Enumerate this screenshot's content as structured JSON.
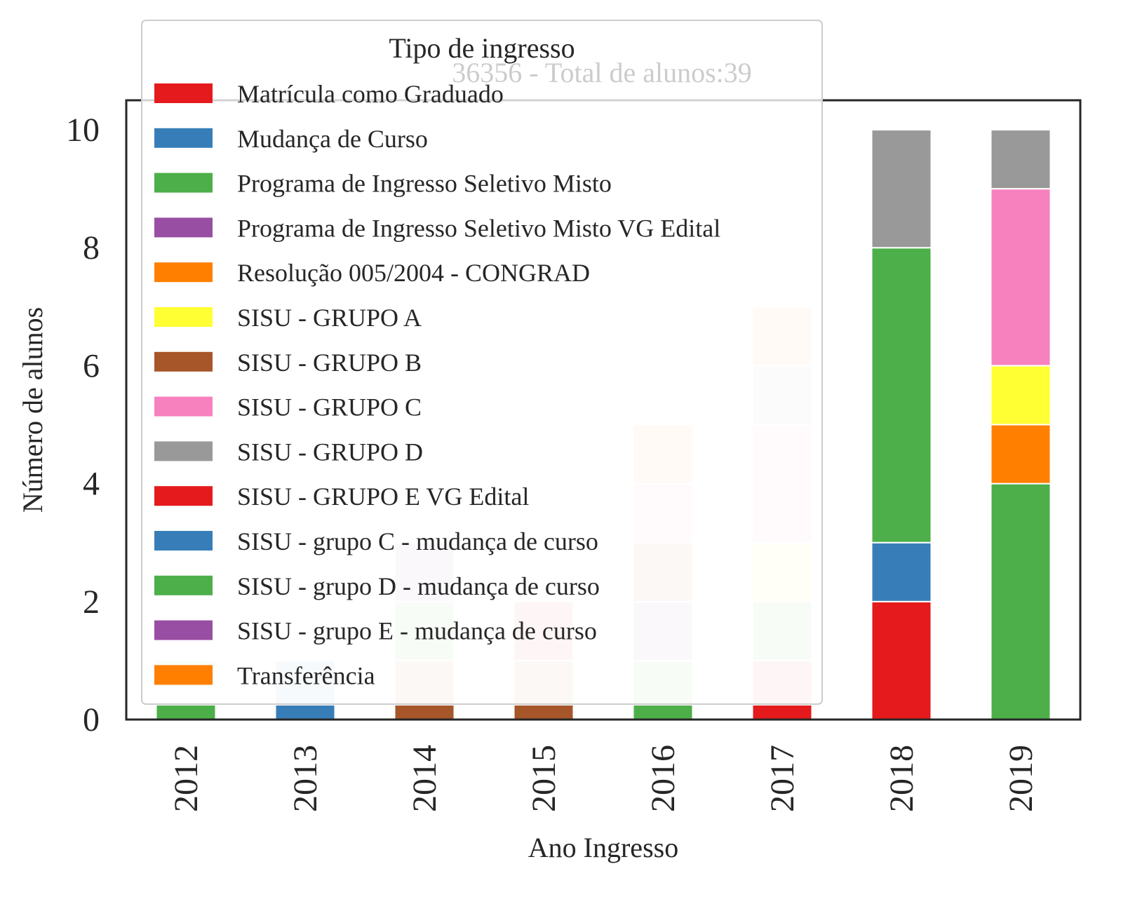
{
  "chart_data": {
    "type": "bar",
    "stacked": true,
    "title": "36356 - Total de alunos:39",
    "xlabel": "Ano Ingresso",
    "ylabel": "Número de alunos",
    "ylim": [
      0,
      10.5
    ],
    "yticks": [
      0,
      2,
      4,
      6,
      8,
      10
    ],
    "categories": [
      "2012",
      "2013",
      "2014",
      "2015",
      "2016",
      "2017",
      "2018",
      "2019"
    ],
    "legend": {
      "title": "Tipo de ingresso",
      "placement": "top-left"
    },
    "series": [
      {
        "name": "Matrícula como Graduado",
        "color": "#e41a1c",
        "values": [
          0,
          0,
          0,
          0,
          0,
          0.25,
          2,
          0
        ]
      },
      {
        "name": "Mudança de Curso",
        "color": "#377eb8",
        "values": [
          0,
          0.25,
          0,
          0,
          0,
          0,
          1,
          0
        ]
      },
      {
        "name": "Programa de Ingresso Seletivo Misto",
        "color": "#4daf4a",
        "values": [
          0.25,
          0,
          0,
          0,
          0.25,
          0,
          5,
          4
        ]
      },
      {
        "name": "Programa de Ingresso Seletivo Misto VG Edital",
        "color": "#984ea3",
        "values": [
          0,
          0,
          0,
          0,
          0,
          0,
          0,
          0
        ]
      },
      {
        "name": "Resolução 005/2004 - CONGRAD",
        "color": "#ff7f00",
        "values": [
          0,
          0,
          0,
          0,
          0,
          0,
          0,
          1
        ]
      },
      {
        "name": "SISU - GRUPO A",
        "color": "#ffff33",
        "values": [
          0,
          0,
          0,
          0,
          0,
          0,
          0,
          1
        ]
      },
      {
        "name": "SISU - GRUPO B",
        "color": "#a65628",
        "values": [
          0,
          0,
          0.25,
          0.25,
          0,
          0,
          0,
          0
        ]
      },
      {
        "name": "SISU - GRUPO C",
        "color": "#f781bf",
        "values": [
          0,
          0,
          0,
          0,
          0,
          0,
          0,
          3
        ]
      },
      {
        "name": "SISU - GRUPO D",
        "color": "#999999",
        "values": [
          0,
          0,
          0,
          0,
          0,
          0,
          2,
          1
        ]
      },
      {
        "name": "SISU - GRUPO E VG Edital",
        "color": "#e41a1c",
        "values": [
          0,
          0,
          0,
          0,
          0,
          0,
          0,
          0
        ]
      },
      {
        "name": "SISU - grupo C - mudança de curso",
        "color": "#377eb8",
        "values": [
          0,
          0,
          0,
          0,
          0,
          0,
          0,
          0
        ]
      },
      {
        "name": "SISU - grupo D - mudança de curso",
        "color": "#4daf4a",
        "values": [
          0,
          0,
          0,
          0,
          0,
          0,
          0,
          0
        ]
      },
      {
        "name": "SISU - grupo E - mudança de curso",
        "color": "#984ea3",
        "values": [
          0,
          0,
          0,
          0,
          0,
          0,
          0,
          0
        ]
      },
      {
        "name": "Transferência",
        "color": "#ff7f00",
        "values": [
          0,
          0,
          0,
          0,
          0,
          0,
          0,
          0
        ]
      }
    ],
    "faded_segments": [
      {
        "category": "2012",
        "from": 0.55,
        "to": 1,
        "color": "#dcefd8"
      },
      {
        "category": "2013",
        "from": 0.25,
        "to": 1,
        "color": "#d7e5f1"
      },
      {
        "category": "2014",
        "from": 0.25,
        "to": 1,
        "color": "#eadbd3"
      },
      {
        "category": "2014",
        "from": 1,
        "to": 2,
        "color": "#dcefd8"
      },
      {
        "category": "2014",
        "from": 2,
        "to": 3,
        "color": "#e8dbec"
      },
      {
        "category": "2015",
        "from": 0.25,
        "to": 1,
        "color": "#eadbd3"
      },
      {
        "category": "2015",
        "from": 1,
        "to": 2,
        "color": "#f8d2d2"
      },
      {
        "category": "2016",
        "from": 0.25,
        "to": 1,
        "color": "#dcefd8"
      },
      {
        "category": "2016",
        "from": 1,
        "to": 2,
        "color": "#e8dbec"
      },
      {
        "category": "2016",
        "from": 2,
        "to": 3,
        "color": "#eadbd3"
      },
      {
        "category": "2016",
        "from": 3,
        "to": 4,
        "color": "#fce6f1"
      },
      {
        "category": "2016",
        "from": 4,
        "to": 5,
        "color": "#ffe5cc"
      },
      {
        "category": "2017",
        "from": 0.25,
        "to": 1,
        "color": "#f8d2d2"
      },
      {
        "category": "2017",
        "from": 1,
        "to": 2,
        "color": "#dcefd8"
      },
      {
        "category": "2017",
        "from": 2,
        "to": 3,
        "color": "#ffffd6"
      },
      {
        "category": "2017",
        "from": 3,
        "to": 5,
        "color": "#fce6f1"
      },
      {
        "category": "2017",
        "from": 5,
        "to": 6,
        "color": "#ebebeb"
      },
      {
        "category": "2017",
        "from": 6,
        "to": 7,
        "color": "#ffe5cc"
      }
    ]
  }
}
